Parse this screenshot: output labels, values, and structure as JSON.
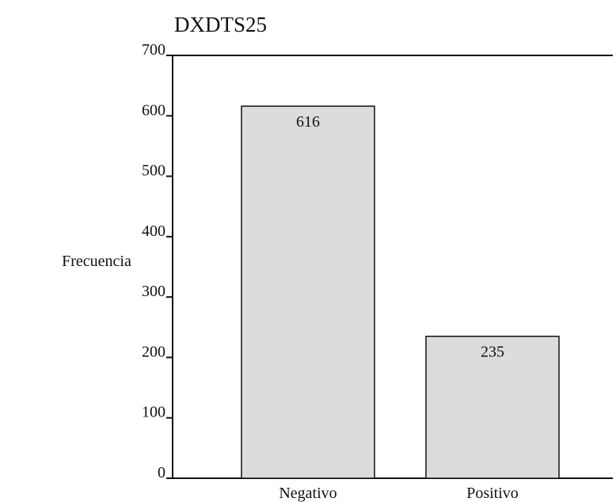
{
  "chart_data": {
    "type": "bar",
    "title": "DXDTS25",
    "xlabel": "",
    "ylabel": "Frecuencia",
    "categories": [
      "Negativo",
      "Positivo"
    ],
    "values": [
      616,
      235
    ],
    "data_labels": [
      "616",
      "235"
    ],
    "ylim": [
      0,
      700
    ],
    "yticks": [
      0,
      100,
      200,
      300,
      400,
      500,
      600,
      700
    ],
    "ytick_labels": [
      "0",
      "100",
      "200",
      "300",
      "400",
      "500",
      "600",
      "700"
    ],
    "grid": false,
    "legend": "none",
    "colors": {
      "bar_fill": "#dcdcdc",
      "bar_stroke": "#111111",
      "axis": "#111111",
      "text": "#111111"
    }
  }
}
